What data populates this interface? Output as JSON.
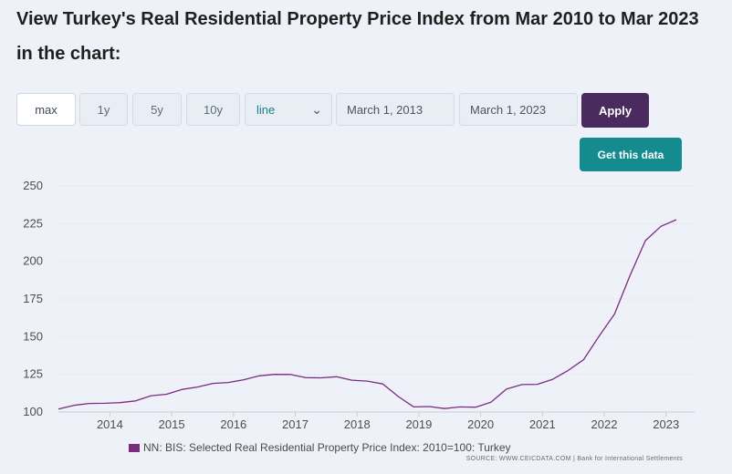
{
  "heading": "View Turkey's Real Residential Property Price Index from Mar 2010 to Mar 2023 in the chart:",
  "controls": {
    "range_buttons": [
      "max",
      "1y",
      "5y",
      "10y"
    ],
    "chart_type_selected": "line",
    "start_date": "March 1, 2013",
    "end_date": "March 1, 2023",
    "apply_label": "Apply",
    "get_data_label": "Get this data"
  },
  "colors": {
    "series": "#7a2d80",
    "apply_button": "#4b2a5e",
    "get_data_button": "#148c8f",
    "background": "#eef2f8"
  },
  "legend": {
    "label": "NN: BIS: Selected Real Residential Property Price Index: 2010=100: Turkey"
  },
  "source": "SOURCE: WWW.CEICDATA.COM | Bank for International Settlements",
  "chart_data": {
    "type": "line",
    "title": "",
    "xlabel": "",
    "ylabel": "",
    "ylim": [
      100,
      250
    ],
    "yticks": [
      100,
      125,
      150,
      175,
      200,
      225,
      250
    ],
    "xticks": [
      "2014",
      "2015",
      "2016",
      "2017",
      "2018",
      "2019",
      "2020",
      "2021",
      "2022",
      "2023"
    ],
    "xlim": [
      "2013-03",
      "2023-03"
    ],
    "grid": "horizontal",
    "legend_position": "bottom",
    "series": [
      {
        "name": "NN: BIS: Selected Real Residential Property Price Index: 2010=100: Turkey",
        "x": [
          "2013-03",
          "2013-06",
          "2013-09",
          "2013-12",
          "2014-03",
          "2014-06",
          "2014-09",
          "2014-12",
          "2015-03",
          "2015-06",
          "2015-09",
          "2015-12",
          "2016-03",
          "2016-06",
          "2016-09",
          "2016-12",
          "2017-03",
          "2017-06",
          "2017-09",
          "2017-12",
          "2018-03",
          "2018-06",
          "2018-09",
          "2018-12",
          "2019-03",
          "2019-06",
          "2019-09",
          "2019-12",
          "2020-03",
          "2020-06",
          "2020-09",
          "2020-12",
          "2021-03",
          "2021-06",
          "2021-09",
          "2021-12",
          "2022-03",
          "2022-06",
          "2022-09",
          "2022-12",
          "2023-03"
        ],
        "values": [
          102.0,
          104.4,
          105.7,
          105.8,
          106.2,
          107.4,
          110.8,
          111.8,
          115.0,
          116.6,
          119.0,
          119.6,
          121.4,
          124.0,
          125.0,
          124.9,
          122.8,
          122.7,
          123.4,
          121.1,
          120.5,
          118.6,
          110.3,
          103.4,
          103.6,
          102.3,
          103.4,
          103.2,
          106.5,
          115.2,
          118.2,
          118.4,
          121.7,
          127.6,
          134.7,
          150.4,
          165.0,
          190.5,
          213.7,
          223.2,
          227.6
        ]
      }
    ]
  }
}
